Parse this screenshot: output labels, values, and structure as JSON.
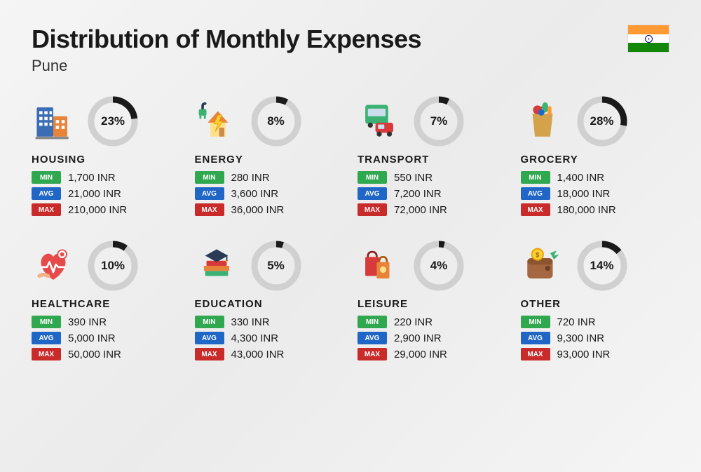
{
  "header": {
    "title": "Distribution of Monthly Expenses",
    "subtitle": "Pune"
  },
  "labels": {
    "min": "MIN",
    "avg": "AVG",
    "max": "MAX"
  },
  "colors": {
    "min": "#2fa84f",
    "avg": "#2066c7",
    "max": "#c92a2a",
    "ring_fg": "#1a1a1a",
    "ring_bg": "#d0d0d0",
    "text": "#1a1a1a"
  },
  "ring": {
    "size": 72,
    "stroke_width": 9,
    "radius": 31
  },
  "categories": [
    {
      "id": "housing",
      "name": "HOUSING",
      "percent": 23,
      "min": "1,700 INR",
      "avg": "21,000 INR",
      "max": "210,000 INR",
      "icon": "buildings"
    },
    {
      "id": "energy",
      "name": "ENERGY",
      "percent": 8,
      "min": "280 INR",
      "avg": "3,600 INR",
      "max": "36,000 INR",
      "icon": "energy"
    },
    {
      "id": "transport",
      "name": "TRANSPORT",
      "percent": 7,
      "min": "550 INR",
      "avg": "7,200 INR",
      "max": "72,000 INR",
      "icon": "transport"
    },
    {
      "id": "grocery",
      "name": "GROCERY",
      "percent": 28,
      "min": "1,400 INR",
      "avg": "18,000 INR",
      "max": "180,000 INR",
      "icon": "grocery"
    },
    {
      "id": "healthcare",
      "name": "HEALTHCARE",
      "percent": 10,
      "min": "390 INR",
      "avg": "5,000 INR",
      "max": "50,000 INR",
      "icon": "healthcare"
    },
    {
      "id": "education",
      "name": "EDUCATION",
      "percent": 5,
      "min": "330 INR",
      "avg": "4,300 INR",
      "max": "43,000 INR",
      "icon": "education"
    },
    {
      "id": "leisure",
      "name": "LEISURE",
      "percent": 4,
      "min": "220 INR",
      "avg": "2,900 INR",
      "max": "29,000 INR",
      "icon": "leisure"
    },
    {
      "id": "other",
      "name": "OTHER",
      "percent": 14,
      "min": "720 INR",
      "avg": "9,300 INR",
      "max": "93,000 INR",
      "icon": "other"
    }
  ]
}
